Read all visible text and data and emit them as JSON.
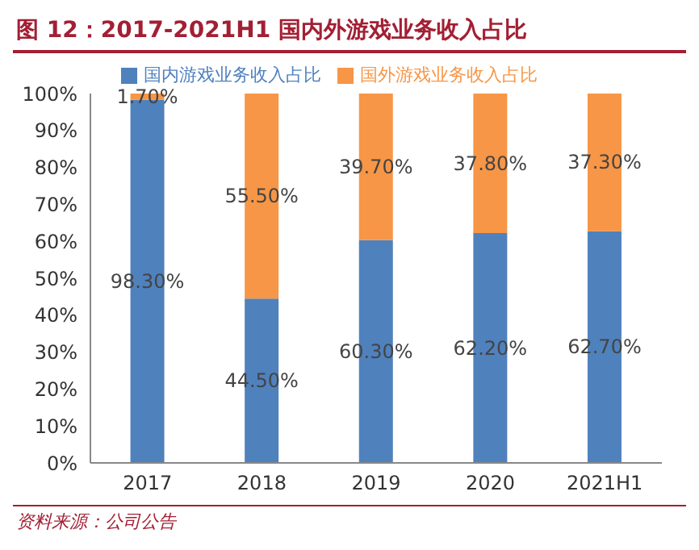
{
  "chart_data": {
    "type": "bar",
    "title": "图 12：2017-2021H1 国内外游戏业务收入占比",
    "stacked": true,
    "categories": [
      "2017",
      "2018",
      "2019",
      "2020",
      "2021H1"
    ],
    "series": [
      {
        "name": "国内游戏业务收入占比",
        "color": "#4f81bd",
        "values": [
          98.3,
          44.5,
          60.3,
          62.2,
          62.7
        ],
        "value_labels": [
          "98.30%",
          "44.50%",
          "60.30%",
          "62.20%",
          "62.70%"
        ]
      },
      {
        "name": "国外游戏业务收入占比",
        "color": "#f79646",
        "values": [
          1.7,
          55.5,
          39.7,
          37.8,
          37.3
        ],
        "value_labels": [
          "1.70%",
          "55.50%",
          "39.70%",
          "37.80%",
          "37.30%"
        ]
      }
    ],
    "ylim": [
      0,
      100
    ],
    "yticks": [
      {
        "value": 0,
        "label": "0%"
      },
      {
        "value": 10,
        "label": "10%"
      },
      {
        "value": 20,
        "label": "20%"
      },
      {
        "value": 30,
        "label": "30%"
      },
      {
        "value": 40,
        "label": "40%"
      },
      {
        "value": 50,
        "label": "50%"
      },
      {
        "value": 60,
        "label": "60%"
      },
      {
        "value": 70,
        "label": "70%"
      },
      {
        "value": 80,
        "label": "80%"
      },
      {
        "value": 90,
        "label": "90%"
      },
      {
        "value": 100,
        "label": "100%"
      }
    ],
    "legend": "top",
    "grid": false,
    "annotations": [
      "资料来源：公司公告"
    ]
  }
}
